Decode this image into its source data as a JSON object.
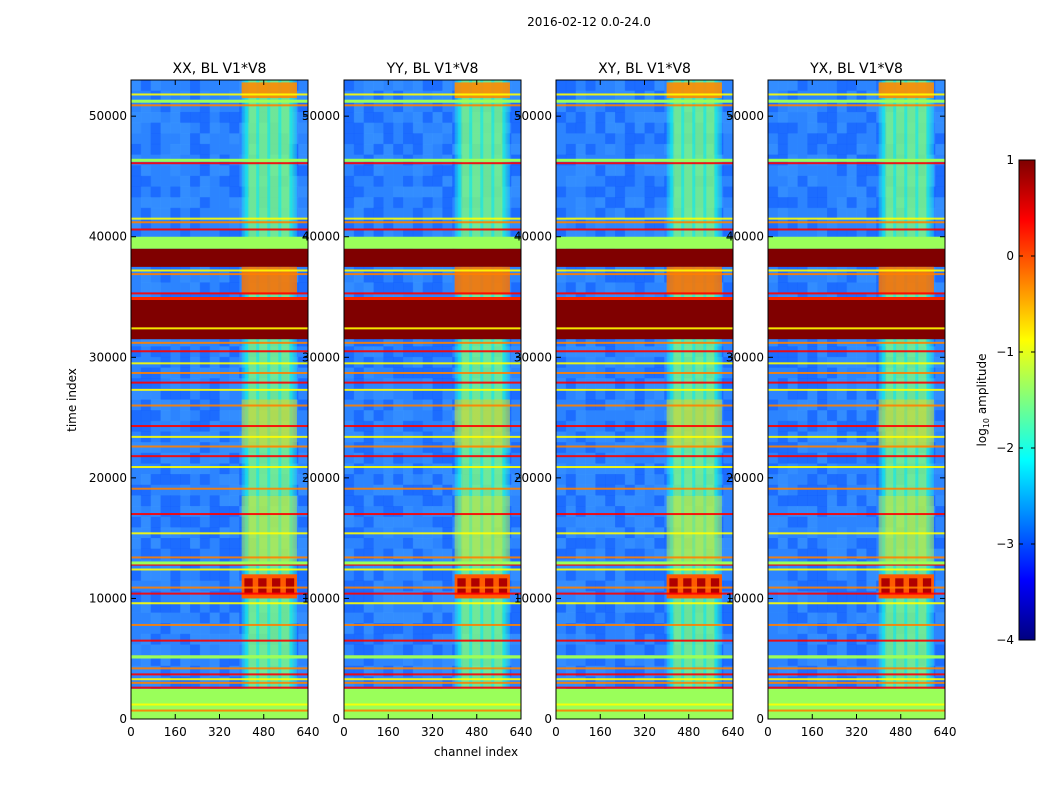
{
  "chart_data": {
    "type": "heatmap",
    "suptitle": "2016-02-12 0.0-24.0",
    "xlabel": "channel index",
    "ylabel": "time index",
    "xlim": [
      0,
      640
    ],
    "ylim": [
      0,
      53000
    ],
    "x_ticks": [
      0,
      160,
      320,
      480,
      640
    ],
    "y_ticks": [
      0,
      10000,
      20000,
      30000,
      40000,
      50000
    ],
    "panels": [
      {
        "title": "XX, BL V1*V8"
      },
      {
        "title": "YY, BL V1*V8"
      },
      {
        "title": "XY, BL V1*V8"
      },
      {
        "title": "YX, BL V1*V8"
      }
    ],
    "colorbar": {
      "label_prefix": "log",
      "label_sub": "10",
      "label_suffix": " amplitude",
      "range": [
        -4,
        1
      ],
      "ticks": [
        1,
        0,
        -1,
        -2,
        -3,
        -4
      ],
      "tick_labels": [
        "1",
        "0",
        "−1",
        "−2",
        "−3",
        "−4"
      ],
      "colormap": "jet",
      "colormap_stops": [
        "#00007f",
        "#0000ff",
        "#007fff",
        "#00ffff",
        "#7fff7f",
        "#ffff00",
        "#ff7f00",
        "#ff0000",
        "#7f0000"
      ]
    },
    "approx_regions": {
      "background_level": -2.5,
      "band_channels": [
        400,
        600
      ],
      "band_level": -1.5,
      "bright_band_time": [
        10000,
        12000
      ],
      "bright_band_level": 0.2,
      "saturated_time": [
        31500,
        35000
      ],
      "saturated_time_2": [
        37500,
        39000
      ],
      "flagged_time": [
        39000,
        40000
      ],
      "flagged_time_bottom": [
        0,
        2500
      ]
    }
  }
}
